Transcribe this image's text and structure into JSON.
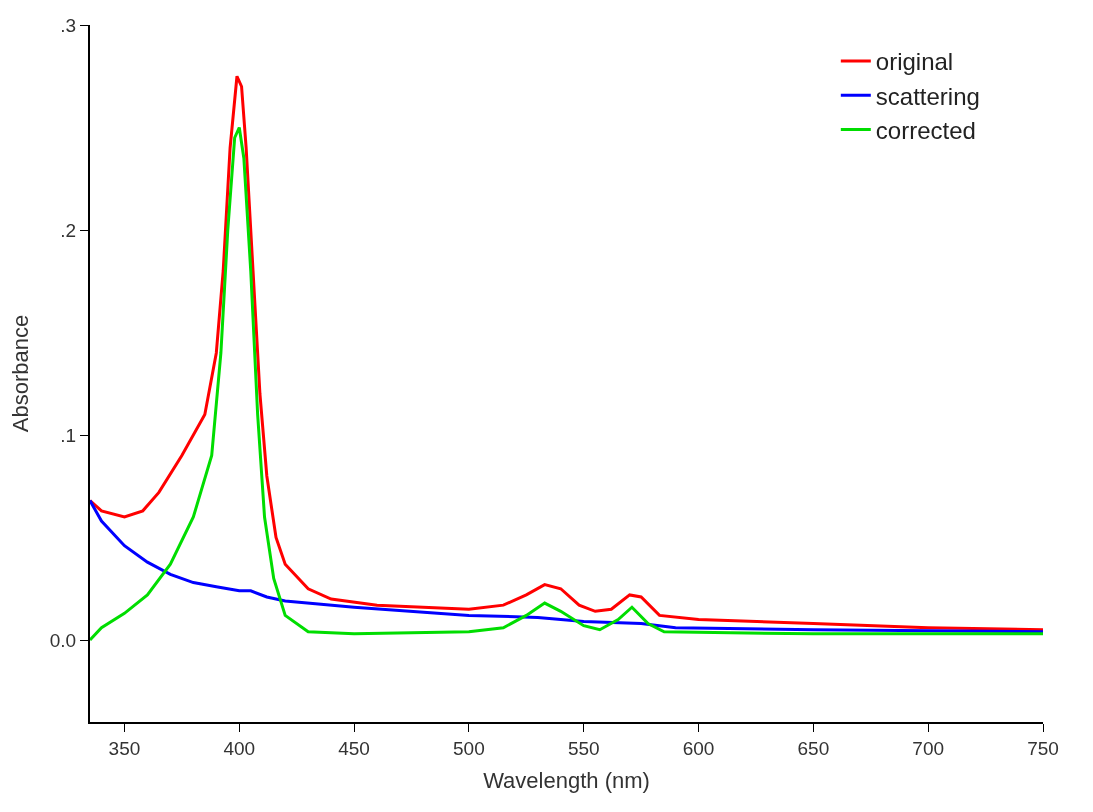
{
  "chart_data": {
    "type": "line",
    "xlabel": "Wavelength (nm)",
    "ylabel": "Absorbance",
    "xlim": [
      335,
      750
    ],
    "xticks": [
      350,
      400,
      450,
      500,
      550,
      600,
      650,
      700,
      750
    ],
    "ylim": [
      -0.04,
      0.3
    ],
    "yticks": [
      {
        "value": 0,
        "label": "0.0"
      },
      {
        "value": 0.1,
        "label": ".1"
      },
      {
        "value": 0.2,
        "label": ".2"
      },
      {
        "value": 0.3,
        "label": ".3"
      }
    ],
    "legend": "top right",
    "marker": "none",
    "line_style": "solid",
    "series": [
      {
        "name": "original",
        "color": "#ff0000",
        "x": [
          335,
          340,
          350,
          358,
          365,
          375,
          385,
          390,
          393,
          396,
          399,
          401,
          403,
          406,
          409,
          412,
          416,
          420,
          430,
          440,
          460,
          480,
          500,
          515,
          525,
          533,
          540,
          548,
          555,
          562,
          570,
          575,
          583,
          600,
          650,
          700,
          750
        ],
        "values": [
          0.068,
          0.063,
          0.06,
          0.063,
          0.072,
          0.09,
          0.11,
          0.14,
          0.18,
          0.24,
          0.275,
          0.27,
          0.24,
          0.18,
          0.12,
          0.08,
          0.05,
          0.037,
          0.025,
          0.02,
          0.017,
          0.016,
          0.015,
          0.017,
          0.022,
          0.027,
          0.025,
          0.017,
          0.014,
          0.015,
          0.022,
          0.021,
          0.012,
          0.01,
          0.008,
          0.006,
          0.005
        ]
      },
      {
        "name": "scattering",
        "color": "#0000ff",
        "x": [
          335,
          340,
          350,
          360,
          370,
          380,
          390,
          400,
          405,
          412,
          420,
          450,
          500,
          530,
          550,
          575,
          590,
          650,
          750
        ],
        "values": [
          0.068,
          0.058,
          0.046,
          0.038,
          0.032,
          0.028,
          0.026,
          0.024,
          0.024,
          0.021,
          0.019,
          0.016,
          0.012,
          0.011,
          0.009,
          0.008,
          0.006,
          0.005,
          0.004
        ]
      },
      {
        "name": "corrected",
        "color": "#00dd00",
        "x": [
          335,
          340,
          350,
          360,
          370,
          380,
          388,
          392,
          395,
          398,
          400,
          402,
          405,
          408,
          411,
          415,
          420,
          430,
          450,
          500,
          515,
          525,
          533,
          540,
          550,
          557,
          565,
          571,
          578,
          585,
          650,
          750
        ],
        "values": [
          0.0,
          0.006,
          0.013,
          0.022,
          0.037,
          0.06,
          0.09,
          0.14,
          0.2,
          0.245,
          0.25,
          0.235,
          0.18,
          0.11,
          0.06,
          0.03,
          0.012,
          0.004,
          0.003,
          0.004,
          0.006,
          0.012,
          0.018,
          0.014,
          0.007,
          0.005,
          0.01,
          0.016,
          0.008,
          0.004,
          0.003,
          0.003
        ]
      }
    ]
  }
}
